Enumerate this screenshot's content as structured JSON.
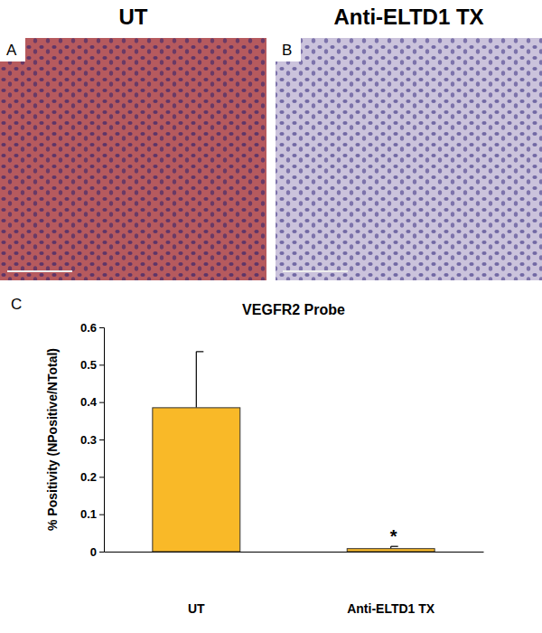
{
  "panels": [
    {
      "letter": "A",
      "title": "UT"
    },
    {
      "letter": "B",
      "title": "Anti-ELTD1 TX"
    }
  ],
  "chart_data": {
    "type": "bar",
    "panel_label": "C",
    "title": "VEGFR2 Probe",
    "y_label": "% Positivity (NPositive/NTotal)",
    "categories": [
      "UT",
      "Anti-ELTD1 TX"
    ],
    "values": [
      0.385,
      0.008
    ],
    "errors": [
      0.15,
      0.006
    ],
    "color": "#f9b928",
    "ylim": [
      0,
      0.6
    ],
    "yticks": [
      0,
      0.1,
      0.2,
      0.3,
      0.4,
      0.5,
      0.6
    ],
    "grid": false,
    "annotations": [
      {
        "text": "*",
        "x": "Anti-ELTD1 TX"
      }
    ]
  }
}
